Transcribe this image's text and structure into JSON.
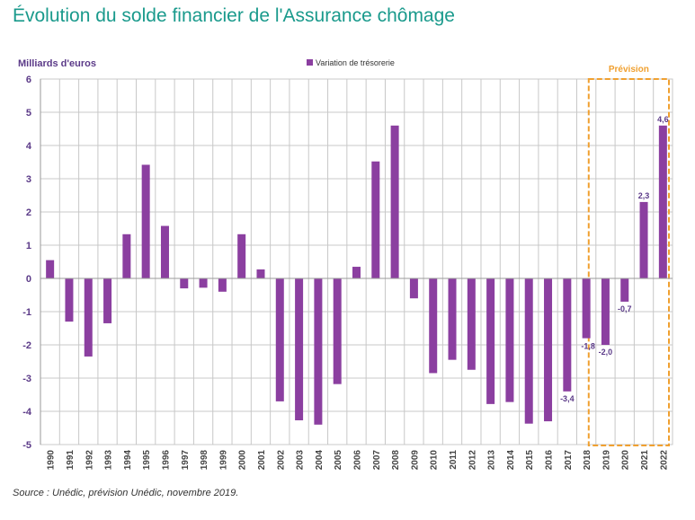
{
  "title": "Évolution du solde financier de l'Assurance chômage",
  "source": "Source : Unédic, prévision Unédic, novembre 2019.",
  "colors": {
    "title": "#1a9a8c",
    "bar": "#8b3fa0",
    "axis_text": "#5b3a88",
    "forecast_box": "#f0a030",
    "grid": "#c8c8c8"
  },
  "chart_data": {
    "type": "bar",
    "ylabel": "Milliards d'euros",
    "ylim": [
      -5,
      6
    ],
    "yticks": [
      6,
      5,
      4,
      3,
      2,
      1,
      0,
      -1,
      -2,
      -3,
      -4,
      -5
    ],
    "grid": true,
    "legend_position": "top-center",
    "forecast_label": "Prévision",
    "forecast_categories": [
      "2019",
      "2020",
      "2021",
      "2022"
    ],
    "categories": [
      "1990",
      "1991",
      "1992",
      "1993",
      "1994",
      "1995",
      "1996",
      "1997",
      "1998",
      "1999",
      "2000",
      "2001",
      "2002",
      "2003",
      "2004",
      "2005",
      "2006",
      "2007",
      "2008",
      "2009",
      "2010",
      "2011",
      "2012",
      "2013",
      "2014",
      "2015",
      "2016",
      "2017",
      "2018",
      "2019",
      "2020",
      "2021",
      "2022"
    ],
    "series": [
      {
        "name": "Variation de trésorerie",
        "values": [
          0.55,
          -1.3,
          -2.35,
          -1.35,
          1.33,
          3.42,
          1.58,
          -0.3,
          -0.28,
          -0.4,
          1.33,
          0.27,
          -3.7,
          -4.27,
          -4.4,
          -3.18,
          0.35,
          3.52,
          4.6,
          -0.6,
          -2.85,
          -2.45,
          -2.75,
          -3.78,
          -3.72,
          -4.37,
          -4.3,
          -3.4,
          -1.8,
          -2.0,
          -0.7,
          2.3,
          4.6
        ],
        "data_labels": {
          "2017": "-3,4",
          "2018": "-1,8",
          "2019": "-2,0",
          "2020": "-0,7",
          "2021": "2,3",
          "2022": "4,6"
        }
      }
    ]
  }
}
